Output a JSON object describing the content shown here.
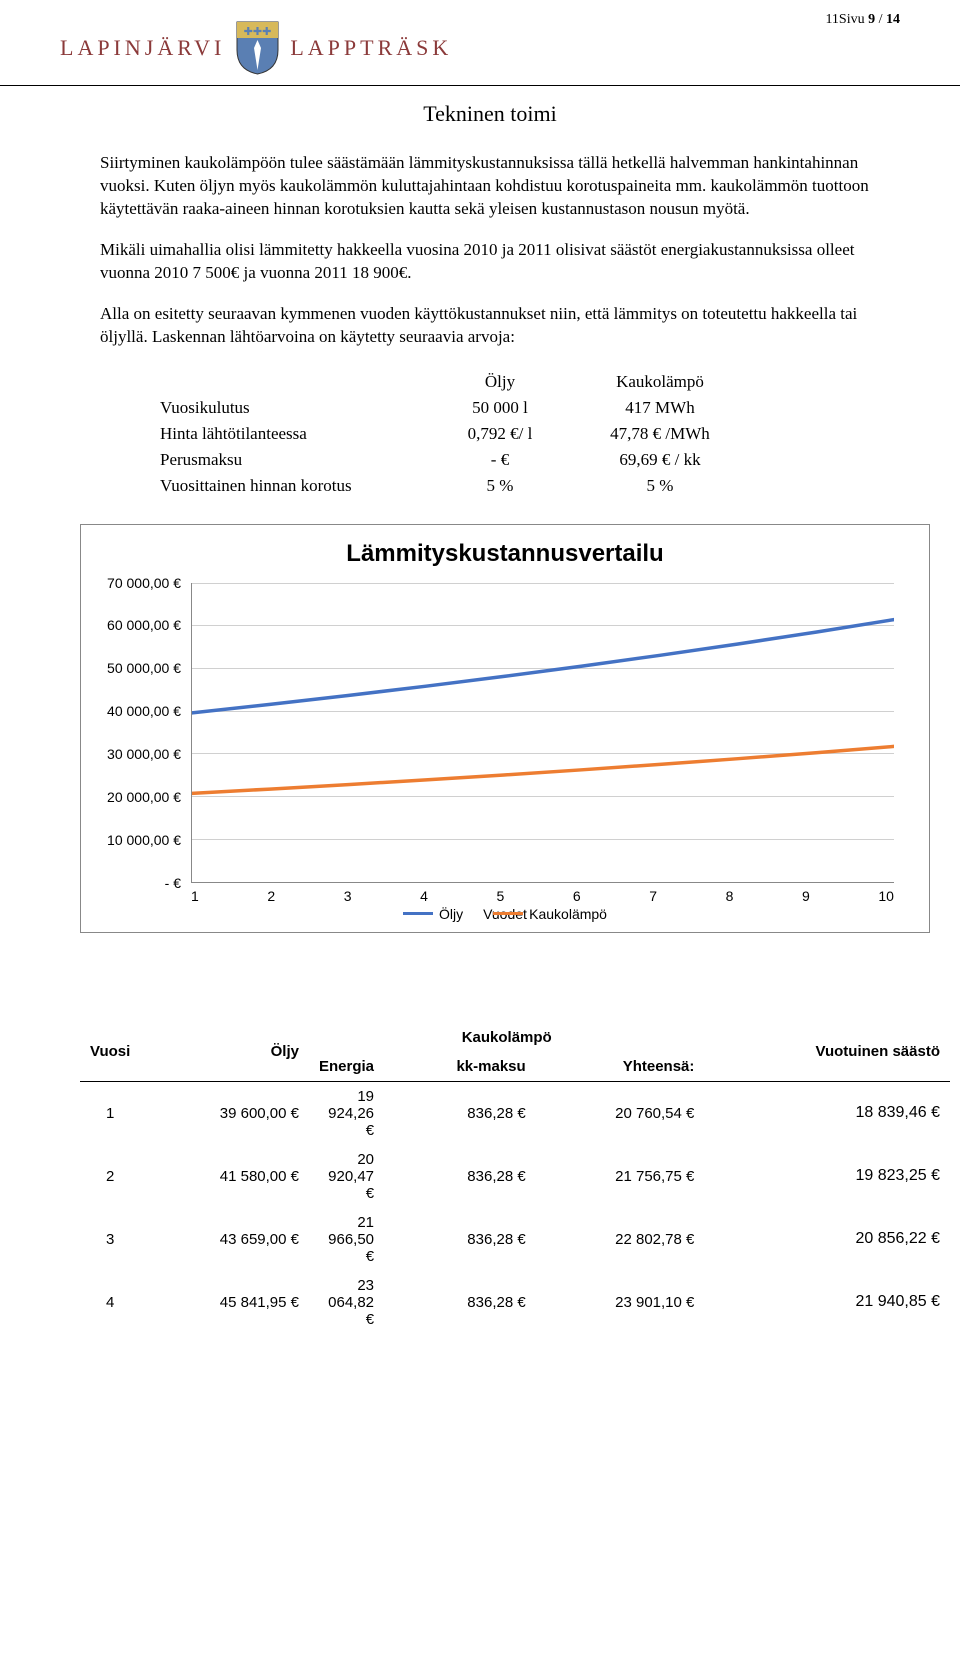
{
  "header": {
    "left_name": "LAPINJÄRVI",
    "right_name": "LAPPTRÄSK",
    "crest_colors": {
      "shield": "#5a7fb3",
      "accent": "#d7b95a"
    },
    "page_marker": "11Sivu ",
    "page_current": "9",
    "page_sep": " / ",
    "page_total": "14"
  },
  "title": "Tekninen toimi",
  "paragraphs": {
    "p1": "Siirtyminen kaukolämpöön tulee säästämään lämmityskustannuksissa tällä hetkellä halvemman hankintahinnan vuoksi. Kuten öljyn myös kaukolämmön kuluttajahintaan kohdistuu korotuspaineita mm. kaukolämmön tuottoon käytettävän raaka-aineen hinnan korotuksien kautta sekä yleisen kustannustason nousun myötä.",
    "p2": "Mikäli uimahallia olisi lämmitetty hakkeella vuosina 2010 ja 2011 olisivat säästöt energiakustannuksissa olleet vuonna 2010 7 500€ ja vuonna 2011 18 900€.",
    "p3": "Alla on esitetty seuraavan kymmenen vuoden käyttökustannukset niin, että lämmitys on toteutettu hakkeella tai öljyllä. Laskennan lähtöarvoina on käytetty seuraavia arvoja:"
  },
  "cost_table": {
    "col_oil": "Öljy",
    "col_district": "Kaukolämpö",
    "rows": [
      {
        "label": "Vuosikulutus",
        "oil": "50 000 l",
        "district": "417 MWh"
      },
      {
        "label": "Hinta lähtötilanteessa",
        "oil": "0,792 €/ l",
        "district": "47,78 € /MWh"
      },
      {
        "label": "Perusmaksu",
        "oil": "-   €",
        "district": "69,69 € / kk"
      },
      {
        "label": "Vuosittainen hinnan korotus",
        "oil": "5 %",
        "district": "5 %"
      }
    ]
  },
  "chart": {
    "title": "Lämmityskustannusvertailu",
    "type": "line",
    "x_labels": [
      "1",
      "2",
      "3",
      "4",
      "5",
      "6",
      "7",
      "8",
      "9",
      "10"
    ],
    "x_axis_title": "Vuodet",
    "y_labels": [
      "-   €",
      "10 000,00 €",
      "20 000,00 €",
      "30 000,00 €",
      "40 000,00 €",
      "50 000,00 €",
      "60 000,00 €",
      "70 000,00 €"
    ],
    "ylim": [
      0,
      70000
    ],
    "grid_color": "#d0d0d0",
    "background_color": "#ffffff",
    "series": {
      "oil": {
        "label": "Öljy",
        "color": "#4472c4",
        "width": 3.5,
        "values": [
          39600,
          41580,
          43659,
          45842,
          48134,
          50541,
          53068,
          55721,
          58507,
          61432
        ]
      },
      "district": {
        "label": "Kaukolämpö",
        "color": "#ed7d31",
        "width": 3.5,
        "values": [
          20761,
          21757,
          22803,
          23901,
          25054,
          26264,
          27535,
          28870,
          30271,
          31742
        ]
      }
    }
  },
  "data_table": {
    "header": {
      "year": "Vuosi",
      "oil": "Öljy",
      "district_group": "Kaukolämpö",
      "energy": "Energia",
      "monthly": "kk-maksu",
      "total": "Yhteensä:",
      "saving": "Vuotuinen säästö"
    },
    "rows": [
      {
        "year": "1",
        "oil": "39 600,00 €",
        "energy": "19 924,26 €",
        "monthly": "836,28 €",
        "total": "20 760,54 €",
        "saving": "18 839,46 €"
      },
      {
        "year": "2",
        "oil": "41 580,00 €",
        "energy": "20 920,47 €",
        "monthly": "836,28 €",
        "total": "21 756,75 €",
        "saving": "19 823,25 €"
      },
      {
        "year": "3",
        "oil": "43 659,00 €",
        "energy": "21 966,50 €",
        "monthly": "836,28 €",
        "total": "22 802,78 €",
        "saving": "20 856,22 €"
      },
      {
        "year": "4",
        "oil": "45 841,95 €",
        "energy": "23 064,82 €",
        "monthly": "836,28 €",
        "total": "23 901,10 €",
        "saving": "21 940,85 €"
      }
    ]
  }
}
